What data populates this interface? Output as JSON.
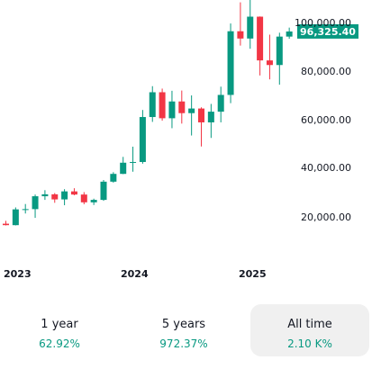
{
  "chart_data": {
    "type": "candlestick",
    "x_ticks": [
      "2023",
      "2024",
      "2025"
    ],
    "y_ticks": [
      "100,000.00",
      "80,000.00",
      "60,000.00",
      "40,000.00",
      "20,000.00"
    ],
    "ylim": [
      0,
      110000
    ],
    "last_price": "96,325.40",
    "last_price_value": 96325.4,
    "colors": {
      "up": "#089981",
      "down": "#f23645",
      "tag": "#089981"
    },
    "candles": [
      {
        "date": "2022-12",
        "open": 17200,
        "high": 18400,
        "low": 16500,
        "close": 16600
      },
      {
        "date": "2023-01",
        "open": 16600,
        "high": 23900,
        "low": 16500,
        "close": 23100
      },
      {
        "date": "2023-02",
        "open": 23100,
        "high": 25300,
        "low": 21400,
        "close": 23200
      },
      {
        "date": "2023-03",
        "open": 23200,
        "high": 29200,
        "low": 19600,
        "close": 28500
      },
      {
        "date": "2023-04",
        "open": 28500,
        "high": 31000,
        "low": 27000,
        "close": 29300
      },
      {
        "date": "2023-05",
        "open": 29300,
        "high": 29800,
        "low": 25800,
        "close": 27200
      },
      {
        "date": "2023-06",
        "open": 27200,
        "high": 31400,
        "low": 24800,
        "close": 30500
      },
      {
        "date": "2023-07",
        "open": 30500,
        "high": 31800,
        "low": 28900,
        "close": 29200
      },
      {
        "date": "2023-08",
        "open": 29200,
        "high": 30200,
        "low": 25200,
        "close": 26000
      },
      {
        "date": "2023-09",
        "open": 26000,
        "high": 27500,
        "low": 24900,
        "close": 27000
      },
      {
        "date": "2023-10",
        "open": 27000,
        "high": 35200,
        "low": 26600,
        "close": 34500
      },
      {
        "date": "2023-11",
        "open": 34500,
        "high": 38400,
        "low": 34100,
        "close": 37700
      },
      {
        "date": "2023-12",
        "open": 37700,
        "high": 44700,
        "low": 37600,
        "close": 42300
      },
      {
        "date": "2024-01",
        "open": 42300,
        "high": 48900,
        "low": 38600,
        "close": 42600
      },
      {
        "date": "2024-02",
        "open": 42600,
        "high": 64000,
        "low": 41900,
        "close": 61100
      },
      {
        "date": "2024-03",
        "open": 61100,
        "high": 73800,
        "low": 59100,
        "close": 71300
      },
      {
        "date": "2024-04",
        "open": 71300,
        "high": 72800,
        "low": 59600,
        "close": 60600
      },
      {
        "date": "2024-05",
        "open": 60600,
        "high": 71900,
        "low": 56500,
        "close": 67500
      },
      {
        "date": "2024-06",
        "open": 67500,
        "high": 72000,
        "low": 58400,
        "close": 62700
      },
      {
        "date": "2024-07",
        "open": 62700,
        "high": 70000,
        "low": 53500,
        "close": 64600
      },
      {
        "date": "2024-08",
        "open": 64600,
        "high": 65100,
        "low": 49000,
        "close": 58900
      },
      {
        "date": "2024-09",
        "open": 58900,
        "high": 66500,
        "low": 52500,
        "close": 63300
      },
      {
        "date": "2024-10",
        "open": 63300,
        "high": 73600,
        "low": 58900,
        "close": 70200
      },
      {
        "date": "2024-11",
        "open": 70200,
        "high": 99600,
        "low": 66800,
        "close": 96400
      },
      {
        "date": "2024-12",
        "open": 96400,
        "high": 108300,
        "low": 90500,
        "close": 93400
      },
      {
        "date": "2025-01",
        "open": 93400,
        "high": 109600,
        "low": 89200,
        "close": 102400
      },
      {
        "date": "2025-02",
        "open": 102400,
        "high": 102500,
        "low": 78200,
        "close": 84400
      },
      {
        "date": "2025-03",
        "open": 84400,
        "high": 95000,
        "low": 76600,
        "close": 82500
      },
      {
        "date": "2025-04",
        "open": 82500,
        "high": 95800,
        "low": 74400,
        "close": 94200
      },
      {
        "date": "2025-05",
        "open": 94200,
        "high": 97900,
        "low": 93300,
        "close": 96300
      }
    ]
  },
  "ranges": [
    {
      "label": "1 year",
      "change": "62.92%",
      "active": false
    },
    {
      "label": "5 years",
      "change": "972.37%",
      "active": false
    },
    {
      "label": "All time",
      "change": "2.10 K%",
      "active": true
    }
  ]
}
